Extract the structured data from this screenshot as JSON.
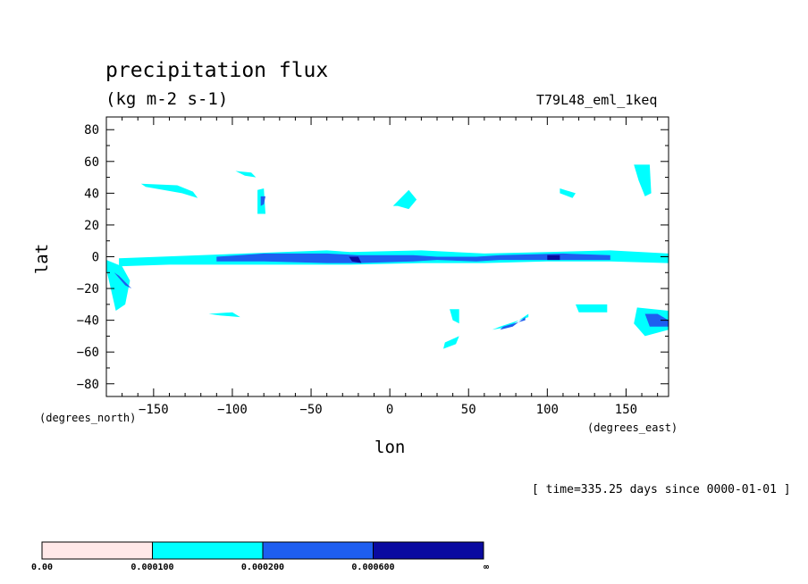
{
  "chart_data": {
    "type": "heatmap",
    "title": "precipitation flux",
    "units": "(kg m-2 s-1)",
    "model_label": "T79L48_eml_1keq",
    "xlabel": "lon",
    "ylabel": "lat",
    "x_units_note": "(degrees_east)",
    "y_units_note": "(degrees_north)",
    "time_label": "[ time=335.25 days since 0000-01-01 ]",
    "xlim": [
      -180,
      177
    ],
    "ylim": [
      -88,
      88
    ],
    "x_ticks": [
      -150,
      -100,
      -50,
      0,
      50,
      100,
      150
    ],
    "y_ticks": [
      -80,
      -60,
      -40,
      -20,
      0,
      20,
      40,
      60,
      80
    ],
    "x_tick_labels": [
      "−150",
      "−100",
      "−50",
      "0",
      "50",
      "100",
      "150"
    ],
    "y_tick_labels": [
      "−80",
      "−60",
      "−40",
      "−20",
      "0",
      "20",
      "40",
      "60",
      "80"
    ],
    "levels": [
      0.0,
      0.0001,
      0.0002,
      0.0006
    ],
    "colorbar": {
      "labels": [
        "0.00",
        "0.000100",
        "0.000200",
        "0.000600",
        "∞"
      ],
      "colors": [
        "#ffe8e8",
        "#00ffff",
        "#1e5ef0",
        "#0a0aa0"
      ]
    },
    "regions": [
      {
        "level": 1,
        "lon": [
          -172,
          -40,
          -25,
          20,
          60,
          100,
          140,
          177,
          177,
          140,
          100,
          60,
          20,
          -25,
          -40,
          -140,
          -172
        ],
        "lat": [
          -1,
          4,
          3,
          4,
          2,
          3,
          4,
          2,
          -4,
          -3,
          -3,
          -4,
          -4,
          -5,
          -5,
          -5,
          -6
        ]
      },
      {
        "level": 1,
        "lon": [
          -180,
          -170,
          -165,
          -168,
          -174,
          -180
        ],
        "lat": [
          -2,
          -6,
          -15,
          -30,
          -34,
          -8
        ]
      },
      {
        "level": 1,
        "lon": [
          -158,
          -135,
          -125,
          -122,
          -132,
          -155
        ],
        "lat": [
          46,
          45,
          41,
          37,
          40,
          44
        ]
      },
      {
        "level": 1,
        "lon": [
          -98,
          -88,
          -85,
          -92
        ],
        "lat": [
          54,
          53,
          50,
          51
        ]
      },
      {
        "level": 1,
        "lon": [
          -84,
          -80,
          -79,
          -84
        ],
        "lat": [
          42,
          43,
          27,
          27
        ]
      },
      {
        "level": 1,
        "lon": [
          2,
          12,
          17,
          12,
          5
        ],
        "lat": [
          32,
          42,
          36,
          30,
          32
        ]
      },
      {
        "level": 1,
        "lon": [
          155,
          165,
          166,
          162,
          158
        ],
        "lat": [
          58,
          58,
          40,
          38,
          48
        ]
      },
      {
        "level": 1,
        "lon": [
          108,
          118,
          116,
          108
        ],
        "lat": [
          43,
          40,
          37,
          40
        ]
      },
      {
        "level": 1,
        "lon": [
          -115,
          -100,
          -95,
          -108
        ],
        "lat": [
          -36,
          -35,
          -38,
          -37
        ]
      },
      {
        "level": 1,
        "lon": [
          38,
          44,
          44,
          40
        ],
        "lat": [
          -33,
          -33,
          -42,
          -40
        ]
      },
      {
        "level": 1,
        "lon": [
          70,
          88,
          88,
          76,
          65
        ],
        "lat": [
          -44,
          -38,
          -36,
          -44,
          -46
        ]
      },
      {
        "level": 1,
        "lon": [
          118,
          138,
          138,
          120
        ],
        "lat": [
          -30,
          -30,
          -35,
          -35
        ]
      },
      {
        "level": 1,
        "lon": [
          157,
          177,
          177,
          162,
          155
        ],
        "lat": [
          -32,
          -34,
          -46,
          -50,
          -42
        ]
      },
      {
        "level": 1,
        "lon": [
          35,
          44,
          42,
          34
        ],
        "lat": [
          -54,
          -50,
          -55,
          -58
        ]
      },
      {
        "level": 2,
        "lon": [
          -175,
          -172,
          -164,
          -168
        ],
        "lat": [
          -10,
          -12,
          -20,
          -18
        ]
      },
      {
        "level": 2,
        "lon": [
          -110,
          -80,
          -40,
          -20,
          15,
          30,
          55,
          70,
          110,
          140,
          140,
          110,
          70,
          55,
          30,
          15,
          -20,
          -40,
          -80,
          -110
        ],
        "lat": [
          0,
          2,
          2,
          1,
          1,
          0,
          0,
          1,
          2,
          1,
          -2,
          -2,
          -2,
          -3,
          -2,
          -3,
          -4,
          -4,
          -3,
          -3
        ]
      },
      {
        "level": 2,
        "lon": [
          162,
          170,
          177,
          177,
          165
        ],
        "lat": [
          -36,
          -36,
          -40,
          -44,
          -44
        ]
      },
      {
        "level": 2,
        "lon": [
          72,
          86,
          86,
          78,
          70
        ],
        "lat": [
          -44,
          -40,
          -38,
          -44,
          -46
        ]
      },
      {
        "level": 2,
        "lon": [
          -82,
          -79,
          -80,
          -82
        ],
        "lat": [
          38,
          38,
          33,
          32
        ]
      },
      {
        "level": 3,
        "lon": [
          -26,
          -20,
          -18,
          -24
        ],
        "lat": [
          0,
          0,
          -4,
          -3
        ]
      },
      {
        "level": 3,
        "lon": [
          100,
          108,
          108,
          100
        ],
        "lat": [
          1,
          1,
          -2,
          -2
        ]
      }
    ]
  }
}
